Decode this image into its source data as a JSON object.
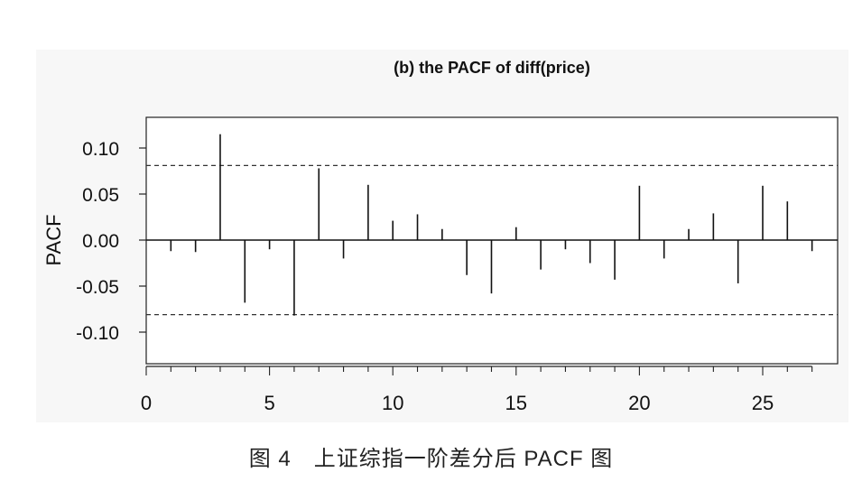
{
  "chart_data": {
    "type": "bar",
    "title": "(b) the PACF of diff(price)",
    "xlabel": "",
    "ylabel": "PACF",
    "xlim": [
      0,
      28
    ],
    "ylim": [
      -0.133,
      0.133
    ],
    "x_ticks": [
      0,
      5,
      10,
      15,
      20,
      25
    ],
    "x_tick_labels": [
      "0",
      "5",
      "10",
      "15",
      "20",
      "25"
    ],
    "y_ticks": [
      0.1,
      0.05,
      0.0,
      -0.05,
      -0.1
    ],
    "y_tick_labels": [
      "0.10",
      "0.05",
      "0.00",
      "-0.05",
      "-0.10"
    ],
    "confidence_bounds": [
      0.081,
      -0.081
    ],
    "grid": false,
    "series": [
      {
        "x": [
          1,
          2,
          3,
          4,
          5,
          6,
          7,
          8,
          9,
          10,
          11,
          12,
          13,
          14,
          15,
          16,
          17,
          18,
          19,
          20,
          21,
          22,
          23,
          24,
          25,
          26,
          27
        ],
        "values": [
          -0.012,
          -0.013,
          0.115,
          -0.068,
          -0.01,
          -0.082,
          0.078,
          -0.02,
          0.06,
          0.021,
          0.028,
          0.012,
          -0.038,
          -0.058,
          0.014,
          -0.032,
          -0.01,
          -0.025,
          -0.043,
          0.059,
          -0.02,
          0.012,
          0.029,
          -0.047,
          0.059,
          0.042,
          -0.012
        ]
      }
    ]
  },
  "caption": "图 4　上证综指一阶差分后 PACF 图"
}
